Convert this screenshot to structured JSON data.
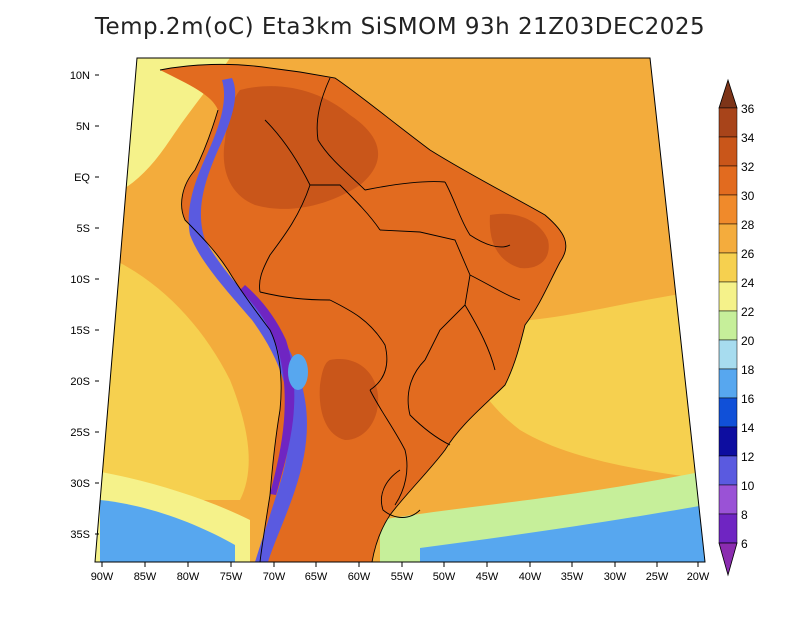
{
  "title": "Temp.2m(oC) Eta3km SiSMOM 93h 21Z03DEC2025",
  "lat_labels": [
    "10N",
    "5N",
    "EQ",
    "5S",
    "10S",
    "15S",
    "20S",
    "25S",
    "30S",
    "35S"
  ],
  "lon_labels": [
    "90W",
    "85W",
    "80W",
    "75W",
    "70W",
    "65W",
    "60W",
    "55W",
    "50W",
    "45W",
    "40W",
    "35W",
    "30W",
    "25W",
    "20W"
  ],
  "colorbar": {
    "labels": [
      "6",
      "8",
      "10",
      "12",
      "14",
      "16",
      "18",
      "20",
      "22",
      "24",
      "26",
      "28",
      "30",
      "32",
      "34",
      "36"
    ],
    "colors": [
      "#8b2cb0",
      "#6f25c2",
      "#9a52d6",
      "#5a5ae0",
      "#0d0da0",
      "#1050d8",
      "#57a7ef",
      "#a7dcef",
      "#c6ef9a",
      "#f5f28a",
      "#f6d04f",
      "#f4ac3d",
      "#f08a2b",
      "#e26b1f",
      "#c9561a",
      "#a8441a",
      "#7d3418"
    ]
  },
  "palette": {
    "ocean_warm": "#f3ac3c",
    "ocean_mid": "#f6d04f",
    "ocean_cool": "#f5f28a",
    "ocean_south": "#c6ef9a",
    "cold_water": "#57a7ef",
    "land_hot": "#e26b1f",
    "land_hotter": "#c9561a",
    "andes_cold": "#5a5ae0",
    "andes_core": "#6f25c2"
  }
}
